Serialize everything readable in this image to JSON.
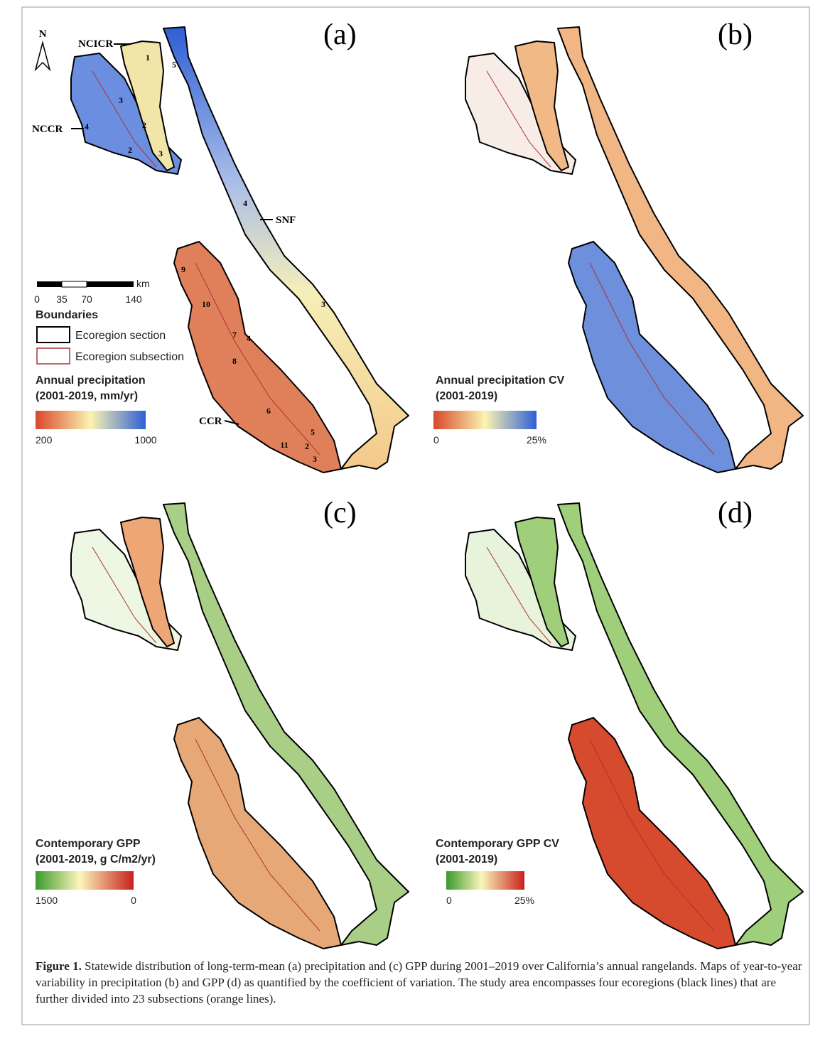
{
  "panels": [
    {
      "label": "(a)",
      "legend": {
        "title": [
          "Annual precipitation",
          "(2001-2019, mm/yr)"
        ],
        "min": "200",
        "max": "1000"
      }
    },
    {
      "label": "(b)",
      "legend": {
        "title": [
          "Annual precipitation CV",
          "(2001-2019)"
        ],
        "min": "0",
        "max": "25%"
      }
    },
    {
      "label": "(c)",
      "legend": {
        "title": [
          "Contemporary GPP",
          "(2001-2019, g C/m2/yr)"
        ],
        "min": "1500",
        "max": "0"
      }
    },
    {
      "label": "(d)",
      "legend": {
        "title": [
          "Contemporary GPP CV",
          "(2001-2019)"
        ],
        "min": "0",
        "max": "25%"
      }
    }
  ],
  "map_labels": {
    "north": "N",
    "regions": [
      "NCICR",
      "NCCR",
      "SNF",
      "CCR"
    ],
    "subsections": [
      "1",
      "5",
      "3",
      "2",
      "4",
      "2",
      "3",
      "4",
      "3",
      "9",
      "10",
      "7",
      "4",
      "8",
      "6",
      "5",
      "11",
      "2",
      "3"
    ]
  },
  "scale_bar": {
    "ticks": [
      "0",
      "35",
      "70",
      "140"
    ],
    "unit": "km"
  },
  "boundaries": {
    "title": "Boundaries",
    "items": [
      "Ecoregion section",
      "Ecoregion subsection"
    ]
  },
  "caption": {
    "label": "Figure 1.",
    "text": "Statewide distribution of long-term-mean (a) precipitation and (c) GPP during 2001–2019 over California’s annual rangelands. Maps of year-to-year variability in precipitation (b) and GPP (d) as quantified by the coefficient of variation. The study area encompasses four ecoregions (black lines) that are further divided into 23 subsections (orange lines)."
  }
}
